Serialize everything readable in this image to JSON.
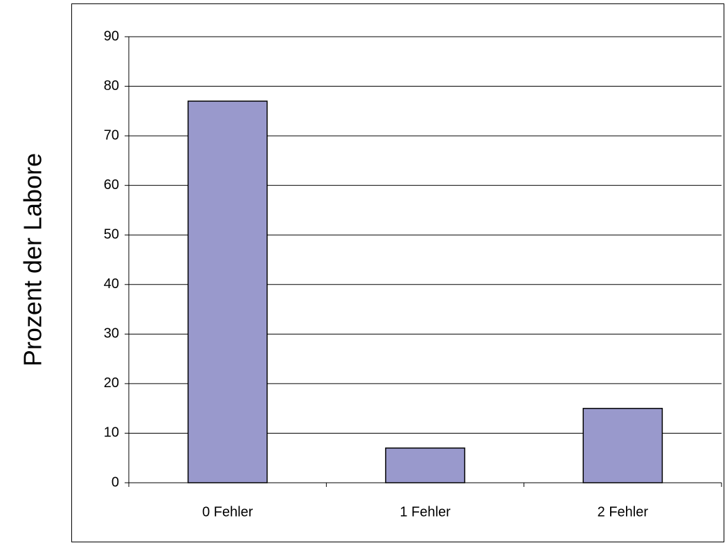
{
  "chart_data": {
    "type": "bar",
    "y_label": "Prozent der Labore",
    "categories": [
      "0 Fehler",
      "1 Fehler",
      "2 Fehler"
    ],
    "values": [
      77,
      7,
      15
    ],
    "color": "#9999cc",
    "ylim": [
      0,
      90
    ],
    "yticks": [
      0,
      10,
      20,
      30,
      40,
      50,
      60,
      70,
      80,
      90
    ],
    "grid": true
  }
}
